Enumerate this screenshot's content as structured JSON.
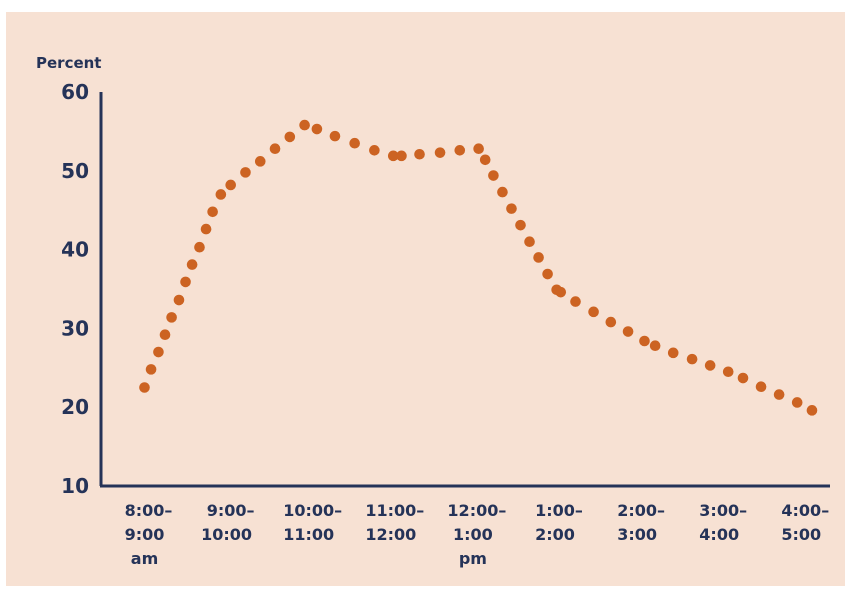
{
  "colors": {
    "background": "#f7e1d3",
    "axis": "#253358",
    "point": "#cc6322"
  },
  "chart_data": {
    "type": "scatter",
    "ylabel": "Percent",
    "ylim": [
      10,
      60
    ],
    "yticks": [
      "10",
      "20",
      "30",
      "40",
      "50",
      "60"
    ],
    "xlim": [
      0,
      8
    ],
    "categories": [
      [
        "8:00–",
        "9:00",
        "am"
      ],
      [
        "9:00–",
        "10:00"
      ],
      [
        "10:00–",
        "11:00"
      ],
      [
        "11:00–",
        "12:00"
      ],
      [
        "12:00–",
        "1:00",
        "pm"
      ],
      [
        "1:00–",
        "2:00"
      ],
      [
        "2:00–",
        "3:00"
      ],
      [
        "3:00–",
        "4:00"
      ],
      [
        "4:00–",
        "5:00"
      ]
    ],
    "grid": false,
    "legend": "none",
    "points": [
      [
        0.0,
        22.5
      ],
      [
        0.08,
        24.8
      ],
      [
        0.17,
        27.0
      ],
      [
        0.25,
        29.2
      ],
      [
        0.33,
        31.4
      ],
      [
        0.42,
        33.6
      ],
      [
        0.5,
        35.9
      ],
      [
        0.58,
        38.1
      ],
      [
        0.67,
        40.3
      ],
      [
        0.75,
        42.6
      ],
      [
        0.83,
        44.8
      ],
      [
        0.93,
        47.0
      ],
      [
        1.05,
        48.2
      ],
      [
        1.23,
        49.8
      ],
      [
        1.41,
        51.2
      ],
      [
        1.59,
        52.8
      ],
      [
        1.77,
        54.3
      ],
      [
        1.95,
        55.8
      ],
      [
        2.1,
        55.3
      ],
      [
        2.32,
        54.4
      ],
      [
        2.56,
        53.5
      ],
      [
        2.8,
        52.6
      ],
      [
        3.03,
        51.9
      ],
      [
        3.13,
        51.9
      ],
      [
        3.35,
        52.1
      ],
      [
        3.6,
        52.3
      ],
      [
        3.84,
        52.6
      ],
      [
        4.07,
        52.8
      ],
      [
        4.15,
        51.4
      ],
      [
        4.25,
        49.4
      ],
      [
        4.36,
        47.3
      ],
      [
        4.47,
        45.2
      ],
      [
        4.58,
        43.1
      ],
      [
        4.69,
        41.0
      ],
      [
        4.8,
        39.0
      ],
      [
        4.91,
        36.9
      ],
      [
        5.02,
        34.9
      ],
      [
        5.07,
        34.6
      ],
      [
        5.25,
        33.4
      ],
      [
        5.47,
        32.1
      ],
      [
        5.68,
        30.8
      ],
      [
        5.89,
        29.6
      ],
      [
        6.09,
        28.4
      ],
      [
        6.22,
        27.8
      ],
      [
        6.44,
        26.9
      ],
      [
        6.67,
        26.1
      ],
      [
        6.89,
        25.3
      ],
      [
        7.11,
        24.5
      ],
      [
        7.29,
        23.7
      ],
      [
        7.51,
        22.6
      ],
      [
        7.73,
        21.6
      ],
      [
        7.95,
        20.6
      ],
      [
        8.13,
        19.6
      ]
    ]
  }
}
